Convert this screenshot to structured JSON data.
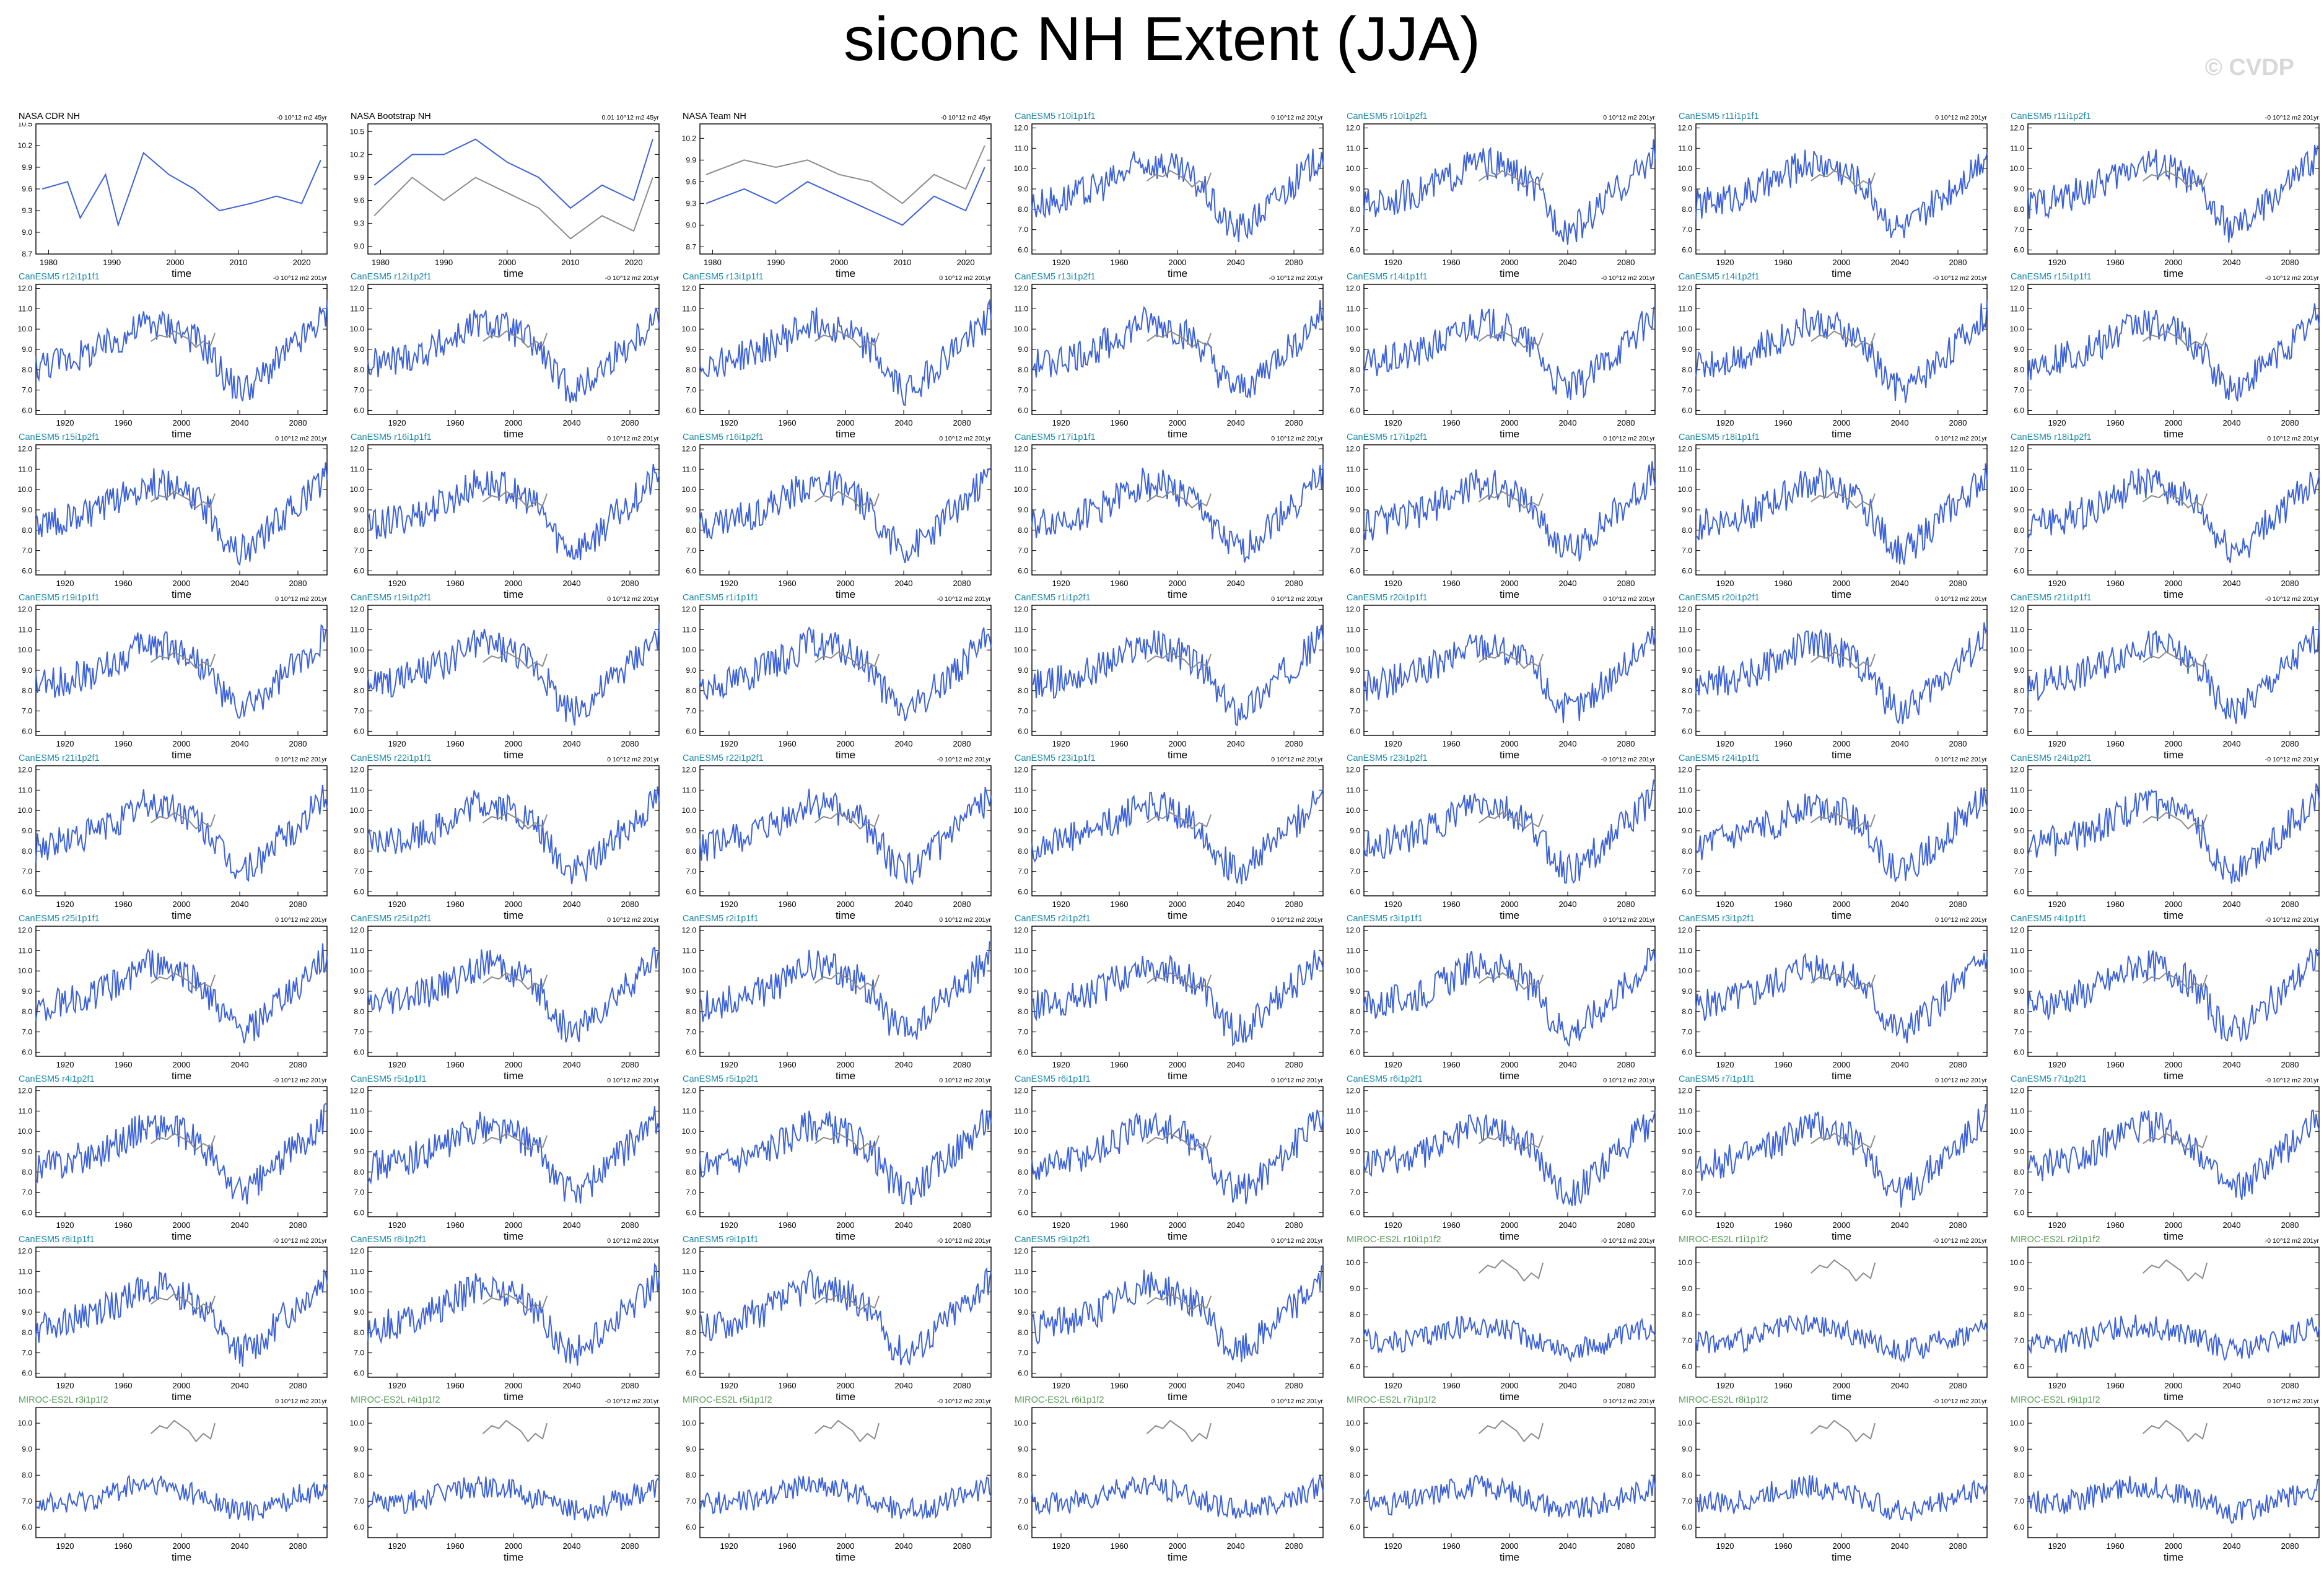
{
  "title": "siconc NH Extent (JJA)",
  "watermark": "© CVDP",
  "colors": {
    "model": "#3d62d8",
    "observed": "#8c8c8c",
    "cam_title": "#1f8aa6",
    "miroc_title": "#5a9a5a"
  },
  "chart_data": [
    {
      "type": "line",
      "panel_title": "NASA CDR NH",
      "trend": "-0 10^12 m2 45yr",
      "xlabel": "time",
      "kind": "obs",
      "ylim": [
        8.7,
        10.5
      ],
      "yticks": [
        "10.5",
        "10.2",
        "9.9",
        "9.6",
        "9.3",
        "9.0",
        "8.7"
      ],
      "xticks": [
        "1980",
        "1990",
        "2000",
        "2010",
        "2020"
      ],
      "xrange": [
        1978,
        2024
      ],
      "series": [
        {
          "role": "model",
          "x": [
            1979,
            1983,
            1985,
            1989,
            1991,
            1995,
            1999,
            2003,
            2007,
            2012,
            2016,
            2020,
            2023
          ],
          "y": [
            9.6,
            9.7,
            9.2,
            9.8,
            9.1,
            10.1,
            9.8,
            9.6,
            9.3,
            9.4,
            9.5,
            9.4,
            10.0
          ]
        }
      ]
    },
    {
      "type": "line",
      "panel_title": "NASA Bootstrap NH",
      "trend": "0.01 10^12 m2 45yr",
      "xlabel": "time",
      "kind": "obs",
      "ylim": [
        8.9,
        10.6
      ],
      "yticks": [
        "10.5",
        "10.2",
        "9.9",
        "9.6",
        "9.3",
        "9.0"
      ],
      "xticks": [
        "1980",
        "1990",
        "2000",
        "2010",
        "2020"
      ],
      "xrange": [
        1978,
        2024
      ],
      "series": [
        {
          "role": "model",
          "x": [
            1979,
            1985,
            1990,
            1995,
            2000,
            2005,
            2010,
            2015,
            2020,
            2023
          ],
          "y": [
            9.8,
            10.2,
            10.2,
            10.4,
            10.1,
            9.9,
            9.5,
            9.8,
            9.6,
            10.4
          ]
        },
        {
          "role": "observed",
          "x": [
            1979,
            1985,
            1990,
            1995,
            2000,
            2005,
            2010,
            2015,
            2020,
            2023
          ],
          "y": [
            9.4,
            9.9,
            9.6,
            9.9,
            9.7,
            9.5,
            9.1,
            9.4,
            9.2,
            9.9
          ]
        }
      ]
    },
    {
      "type": "line",
      "panel_title": "NASA Team NH",
      "trend": "-0 10^12 m2 45yr",
      "xlabel": "time",
      "kind": "obs",
      "ylim": [
        8.6,
        10.4
      ],
      "yticks": [
        "10.2",
        "9.9",
        "9.6",
        "9.3",
        "9.0",
        "8.7"
      ],
      "xticks": [
        "1980",
        "1990",
        "2000",
        "2010",
        "2020"
      ],
      "xrange": [
        1978,
        2024
      ],
      "series": [
        {
          "role": "model",
          "x": [
            1979,
            1985,
            1990,
            1995,
            2000,
            2005,
            2010,
            2015,
            2020,
            2023
          ],
          "y": [
            9.3,
            9.5,
            9.3,
            9.6,
            9.4,
            9.2,
            9.0,
            9.4,
            9.2,
            9.8
          ]
        },
        {
          "role": "observed",
          "x": [
            1979,
            1985,
            1990,
            1995,
            2000,
            2005,
            2010,
            2015,
            2020,
            2023
          ],
          "y": [
            9.7,
            9.9,
            9.8,
            9.9,
            9.7,
            9.6,
            9.3,
            9.7,
            9.5,
            10.1
          ]
        }
      ]
    },
    {
      "type": "line",
      "panel_title": "CanESM5 r10i1p1f1",
      "trend": "0 10^12 m2 201yr"
    },
    {
      "type": "line",
      "panel_title": "CanESM5 r10i1p2f1",
      "trend": "0 10^12 m2 201yr"
    },
    {
      "type": "line",
      "panel_title": "CanESM5 r11i1p1f1",
      "trend": "0 10^12 m2 201yr"
    },
    {
      "type": "line",
      "panel_title": "CanESM5 r11i1p2f1",
      "trend": "-0 10^12 m2 201yr"
    },
    {
      "type": "line",
      "panel_title": "CanESM5 r12i1p1f1",
      "trend": "-0 10^12 m2 201yr"
    },
    {
      "type": "line",
      "panel_title": "CanESM5 r12i1p2f1",
      "trend": "-0 10^12 m2 201yr"
    },
    {
      "type": "line",
      "panel_title": "CanESM5 r13i1p1f1",
      "trend": "0 10^12 m2 201yr"
    },
    {
      "type": "line",
      "panel_title": "CanESM5 r13i1p2f1",
      "trend": "-0 10^12 m2 201yr"
    },
    {
      "type": "line",
      "panel_title": "CanESM5 r14i1p1f1",
      "trend": "-0 10^12 m2 201yr"
    },
    {
      "type": "line",
      "panel_title": "CanESM5 r14i1p2f1",
      "trend": "-0 10^12 m2 201yr"
    },
    {
      "type": "line",
      "panel_title": "CanESM5 r15i1p1f1",
      "trend": "-0 10^12 m2 201yr"
    },
    {
      "type": "line",
      "panel_title": "CanESM5 r15i1p2f1",
      "trend": "0 10^12 m2 201yr"
    },
    {
      "type": "line",
      "panel_title": "CanESM5 r16i1p1f1",
      "trend": "0 10^12 m2 201yr"
    },
    {
      "type": "line",
      "panel_title": "CanESM5 r16i1p2f1",
      "trend": "0 10^12 m2 201yr"
    },
    {
      "type": "line",
      "panel_title": "CanESM5 r17i1p1f1",
      "trend": "0 10^12 m2 201yr"
    },
    {
      "type": "line",
      "panel_title": "CanESM5 r17i1p2f1",
      "trend": "0 10^12 m2 201yr"
    },
    {
      "type": "line",
      "panel_title": "CanESM5 r18i1p1f1",
      "trend": "0 10^12 m2 201yr"
    },
    {
      "type": "line",
      "panel_title": "CanESM5 r18i1p2f1",
      "trend": "0 10^12 m2 201yr"
    },
    {
      "type": "line",
      "panel_title": "CanESM5 r19i1p1f1",
      "trend": "0 10^12 m2 201yr"
    },
    {
      "type": "line",
      "panel_title": "CanESM5 r19i1p2f1",
      "trend": "0 10^12 m2 201yr"
    },
    {
      "type": "line",
      "panel_title": "CanESM5 r1i1p1f1",
      "trend": "-0 10^12 m2 201yr"
    },
    {
      "type": "line",
      "panel_title": "CanESM5 r1i1p2f1",
      "trend": "0 10^12 m2 201yr"
    },
    {
      "type": "line",
      "panel_title": "CanESM5 r20i1p1f1",
      "trend": "0 10^12 m2 201yr"
    },
    {
      "type": "line",
      "panel_title": "CanESM5 r20i1p2f1",
      "trend": "0 10^12 m2 201yr"
    },
    {
      "type": "line",
      "panel_title": "CanESM5 r21i1p1f1",
      "trend": "-0 10^12 m2 201yr"
    },
    {
      "type": "line",
      "panel_title": "CanESM5 r21i1p2f1",
      "trend": "0 10^12 m2 201yr"
    },
    {
      "type": "line",
      "panel_title": "CanESM5 r22i1p1f1",
      "trend": "0 10^12 m2 201yr"
    },
    {
      "type": "line",
      "panel_title": "CanESM5 r22i1p2f1",
      "trend": "-0 10^12 m2 201yr"
    },
    {
      "type": "line",
      "panel_title": "CanESM5 r23i1p1f1",
      "trend": "0 10^12 m2 201yr"
    },
    {
      "type": "line",
      "panel_title": "CanESM5 r23i1p2f1",
      "trend": "-0 10^12 m2 201yr"
    },
    {
      "type": "line",
      "panel_title": "CanESM5 r24i1p1f1",
      "trend": "0 10^12 m2 201yr"
    },
    {
      "type": "line",
      "panel_title": "CanESM5 r24i1p2f1",
      "trend": "-0 10^12 m2 201yr"
    },
    {
      "type": "line",
      "panel_title": "CanESM5 r25i1p1f1",
      "trend": "0 10^12 m2 201yr"
    },
    {
      "type": "line",
      "panel_title": "CanESM5 r25i1p2f1",
      "trend": "0 10^12 m2 201yr"
    },
    {
      "type": "line",
      "panel_title": "CanESM5 r2i1p1f1",
      "trend": "0 10^12 m2 201yr"
    },
    {
      "type": "line",
      "panel_title": "CanESM5 r2i1p2f1",
      "trend": "0 10^12 m2 201yr"
    },
    {
      "type": "line",
      "panel_title": "CanESM5 r3i1p1f1",
      "trend": "0 10^12 m2 201yr"
    },
    {
      "type": "line",
      "panel_title": "CanESM5 r3i1p2f1",
      "trend": "0 10^12 m2 201yr"
    },
    {
      "type": "line",
      "panel_title": "CanESM5 r4i1p1f1",
      "trend": "-0 10^12 m2 201yr"
    },
    {
      "type": "line",
      "panel_title": "CanESM5 r4i1p2f1",
      "trend": "-0 10^12 m2 201yr"
    },
    {
      "type": "line",
      "panel_title": "CanESM5 r5i1p1f1",
      "trend": "0 10^12 m2 201yr"
    },
    {
      "type": "line",
      "panel_title": "CanESM5 r5i1p2f1",
      "trend": "0 10^12 m2 201yr"
    },
    {
      "type": "line",
      "panel_title": "CanESM5 r6i1p1f1",
      "trend": "0 10^12 m2 201yr"
    },
    {
      "type": "line",
      "panel_title": "CanESM5 r6i1p2f1",
      "trend": "0 10^12 m2 201yr"
    },
    {
      "type": "line",
      "panel_title": "CanESM5 r7i1p1f1",
      "trend": "0 10^12 m2 201yr"
    },
    {
      "type": "line",
      "panel_title": "CanESM5 r7i1p2f1",
      "trend": "-0 10^12 m2 201yr"
    },
    {
      "type": "line",
      "panel_title": "CanESM5 r8i1p1f1",
      "trend": "-0 10^12 m2 201yr"
    },
    {
      "type": "line",
      "panel_title": "CanESM5 r8i1p2f1",
      "trend": "0 10^12 m2 201yr"
    },
    {
      "type": "line",
      "panel_title": "CanESM5 r9i1p1f1",
      "trend": "-0 10^12 m2 201yr"
    },
    {
      "type": "line",
      "panel_title": "CanESM5 r9i1p2f1",
      "trend": "0 10^12 m2 201yr"
    },
    {
      "type": "line",
      "panel_title": "MIROC-ES2L r10i1p1f2",
      "trend": "-0 10^12 m2 201yr"
    },
    {
      "type": "line",
      "panel_title": "MIROC-ES2L r1i1p1f2",
      "trend": "-0 10^12 m2 201yr"
    },
    {
      "type": "line",
      "panel_title": "MIROC-ES2L r2i1p1f2",
      "trend": "-0 10^12 m2 201yr"
    },
    {
      "type": "line",
      "panel_title": "MIROC-ES2L r3i1p1f2",
      "trend": "0 10^12 m2 201yr"
    },
    {
      "type": "line",
      "panel_title": "MIROC-ES2L r4i1p1f2",
      "trend": "-0 10^12 m2 201yr"
    },
    {
      "type": "line",
      "panel_title": "MIROC-ES2L r5i1p1f2",
      "trend": "-0 10^12 m2 201yr"
    },
    {
      "type": "line",
      "panel_title": "MIROC-ES2L r6i1p1f2",
      "trend": "0 10^12 m2 201yr"
    },
    {
      "type": "line",
      "panel_title": "MIROC-ES2L r7i1p1f2",
      "trend": "0 10^12 m2 201yr"
    },
    {
      "type": "line",
      "panel_title": "MIROC-ES2L r8i1p1f2",
      "trend": "-0 10^12 m2 201yr"
    },
    {
      "type": "line",
      "panel_title": "MIROC-ES2L r9i1p1f2",
      "trend": "0 10^12 m2 201yr"
    }
  ],
  "model_defaults": {
    "xlabel": "time",
    "xticks": [
      "1920",
      "1960",
      "2000",
      "2040",
      "2080"
    ],
    "xrange": [
      1900,
      2100
    ],
    "canesm": {
      "ylim": [
        5.8,
        12.2
      ],
      "yticks": [
        "12.0",
        "11.0",
        "10.0",
        "9.0",
        "8.0",
        "7.0",
        "6.0"
      ],
      "shape_x": [
        1900,
        1920,
        1940,
        1960,
        1975,
        1990,
        2000,
        2010,
        2020,
        2030,
        2040,
        2050,
        2060,
        2070,
        2080,
        2090,
        2100
      ],
      "shape_y": [
        8.2,
        8.5,
        8.9,
        9.6,
        10.3,
        10.2,
        9.9,
        9.5,
        8.8,
        7.6,
        7.0,
        7.3,
        8.0,
        8.7,
        9.3,
        10.0,
        10.8
      ]
    },
    "miroc": {
      "ylim": [
        5.6,
        10.6
      ],
      "yticks": [
        "10.0",
        "9.0",
        "8.0",
        "7.0",
        "6.0"
      ],
      "shape_x": [
        1900,
        1920,
        1940,
        1960,
        1980,
        2000,
        2020,
        2040,
        2060,
        2080,
        2100
      ],
      "shape_y": [
        7.0,
        6.9,
        7.1,
        7.5,
        7.6,
        7.4,
        7.0,
        6.6,
        6.8,
        7.2,
        7.6
      ]
    },
    "observed_x": [
      1979,
      1985,
      1990,
      1995,
      2000,
      2005,
      2010,
      2015,
      2020,
      2023
    ],
    "observed_y": [
      9.5,
      9.8,
      9.7,
      10.0,
      9.8,
      9.6,
      9.2,
      9.5,
      9.3,
      9.9
    ]
  }
}
